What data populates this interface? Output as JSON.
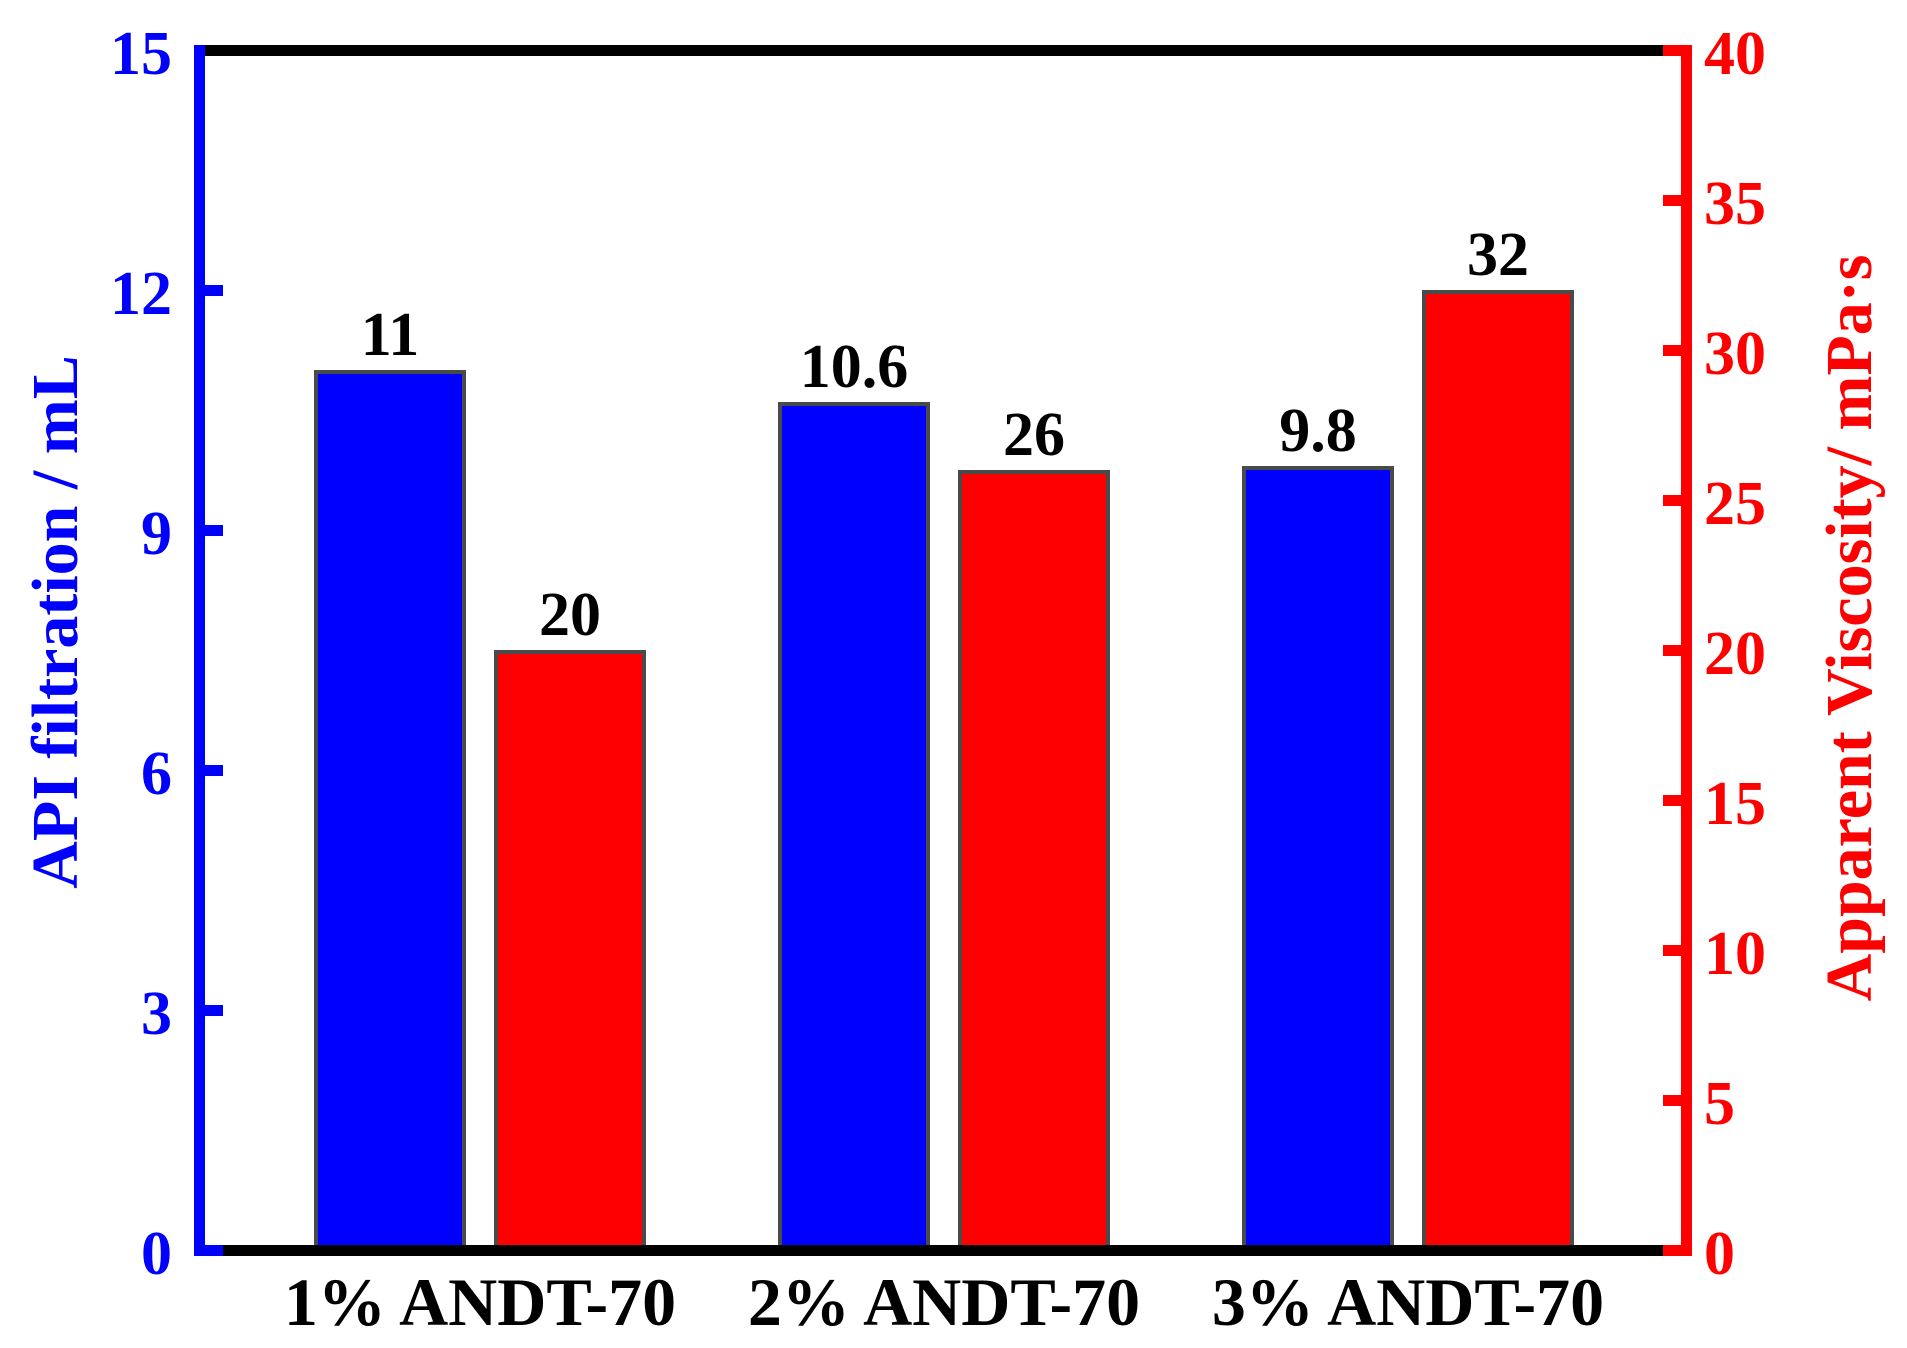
{
  "chart_data": {
    "type": "bar",
    "title": "",
    "categories": [
      "1% ANDT-70",
      "2% ANDT-70",
      "3% ANDT-70"
    ],
    "series": [
      {
        "name": "API filtration",
        "axis": "left",
        "color": "#0000FF",
        "values": [
          11,
          10.6,
          9.8
        ],
        "value_labels": [
          "11",
          "10.6",
          "9.8"
        ]
      },
      {
        "name": "Apparent Viscosity",
        "axis": "right",
        "color": "#FF0000",
        "values": [
          20,
          26,
          32
        ],
        "value_labels": [
          "20",
          "26",
          "32"
        ]
      }
    ],
    "left_axis": {
      "label": "API filtration / mL",
      "color": "#0000FF",
      "min": 0,
      "max": 15,
      "ticks": [
        0,
        3,
        6,
        9,
        12,
        15
      ]
    },
    "right_axis": {
      "label": "Apparent Viscosity/ mPa·s",
      "color": "#FF0000",
      "min": 0,
      "max": 40,
      "ticks": [
        0,
        5,
        10,
        15,
        20,
        25,
        30,
        35,
        40
      ]
    },
    "frame_color": "#000000",
    "bar_border_color": "#4A4A4A",
    "value_label_color": "#000000",
    "background_color": "#FFFFFF",
    "grid": false,
    "legend": false,
    "tick_direction": "in"
  }
}
